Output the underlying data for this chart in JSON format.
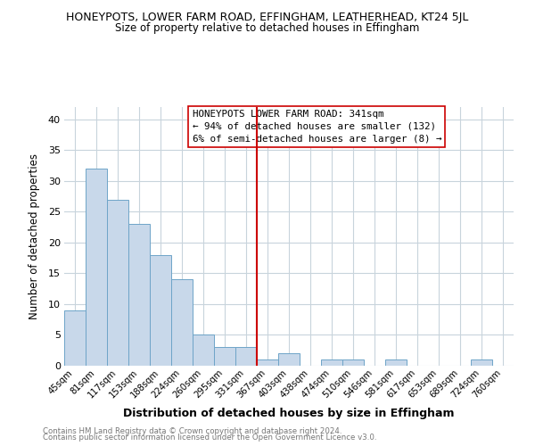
{
  "title_line1": "HONEYPOTS, LOWER FARM ROAD, EFFINGHAM, LEATHERHEAD, KT24 5JL",
  "title_line2": "Size of property relative to detached houses in Effingham",
  "xlabel": "Distribution of detached houses by size in Effingham",
  "ylabel": "Number of detached properties",
  "bin_labels": [
    "45sqm",
    "81sqm",
    "117sqm",
    "153sqm",
    "188sqm",
    "224sqm",
    "260sqm",
    "295sqm",
    "331sqm",
    "367sqm",
    "403sqm",
    "438sqm",
    "474sqm",
    "510sqm",
    "546sqm",
    "581sqm",
    "617sqm",
    "653sqm",
    "689sqm",
    "724sqm",
    "760sqm"
  ],
  "bar_heights": [
    9,
    32,
    27,
    23,
    18,
    14,
    5,
    3,
    3,
    1,
    2,
    0,
    1,
    1,
    0,
    1,
    0,
    0,
    0,
    1,
    0
  ],
  "bar_color": "#c8d8ea",
  "bar_edge_color": "#6ea4c8",
  "vline_x_index": 8.5,
  "vline_color": "#cc0000",
  "ylim": [
    0,
    42
  ],
  "yticks": [
    0,
    5,
    10,
    15,
    20,
    25,
    30,
    35,
    40
  ],
  "annotation_box_title": "HONEYPOTS LOWER FARM ROAD: 341sqm",
  "annotation_line1": "← 94% of detached houses are smaller (132)",
  "annotation_line2": "6% of semi-detached houses are larger (8) →",
  "footer_line1": "Contains HM Land Registry data © Crown copyright and database right 2024.",
  "footer_line2": "Contains public sector information licensed under the Open Government Licence v3.0.",
  "background_color": "#ffffff",
  "grid_color": "#c8d4dc"
}
